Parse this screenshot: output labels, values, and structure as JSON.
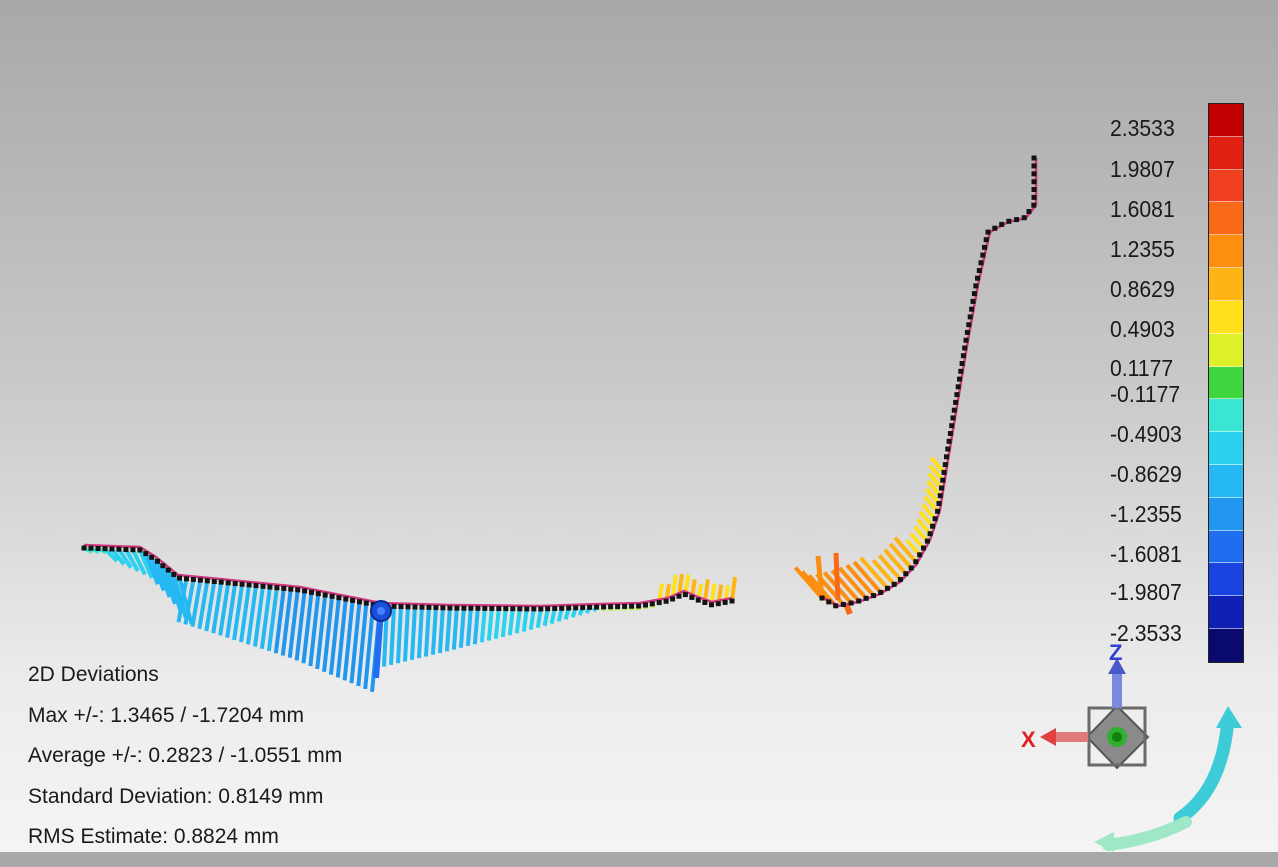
{
  "window": {
    "type": "2D deviation color map viewport"
  },
  "colorbar": {
    "colors": [
      "#c00000",
      "#e02010",
      "#f04020",
      "#f86a18",
      "#fc8e10",
      "#fdb414",
      "#ffe01a",
      "#ddf02a",
      "#3fd63f",
      "#39e6d4",
      "#2ad2f0",
      "#25b8f2",
      "#2196ee",
      "#1f6ef0",
      "#1a44e0",
      "#1120b4",
      "#0a0a6e"
    ],
    "labels": [
      "2.3533",
      "1.9807",
      "1.6081",
      "1.2355",
      "0.8629",
      "0.4903",
      "0.1177",
      "-0.1177",
      "-0.4903",
      "-0.8629",
      "-1.2355",
      "-1.6081",
      "-1.9807",
      "-2.3533"
    ]
  },
  "stats": {
    "title": "2D Deviations",
    "max": "Max +/-: 1.3465 / -1.7204 mm",
    "average": "Average +/-: 0.2823 / -1.0551 mm",
    "std_dev": "Standard Deviation: 0.8149 mm",
    "rms": "RMS Estimate: 0.8824 mm"
  },
  "triad": {
    "x_label": "X",
    "z_label": "Z",
    "colors": {
      "x": "#e03030",
      "z": "#3040d0",
      "y": "#20a020"
    }
  },
  "icons": [
    "view-triad-icon",
    "rotate-arrow-icon",
    "probe-point-icon"
  ]
}
